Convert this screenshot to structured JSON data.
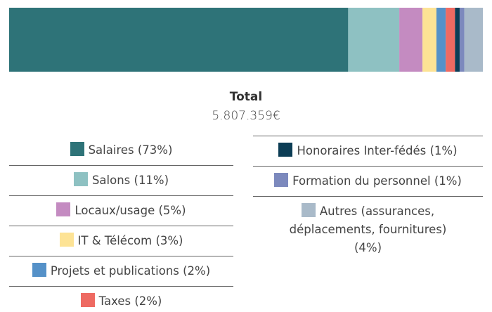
{
  "chart_data": {
    "type": "stacked_bar",
    "total_title": "Total",
    "total_value": "5.807.359€",
    "series": [
      {
        "name": "Salaires (73%)",
        "color": "#2e7378",
        "values": [
          73
        ]
      },
      {
        "name": "Salons (11%)",
        "color": "#8ec1c2",
        "values": [
          11
        ]
      },
      {
        "name": "Locaux/usage (5%)",
        "color": "#c48bc1",
        "values": [
          5
        ]
      },
      {
        "name": "IT & Télécom (3%)",
        "color": "#fde395",
        "values": [
          3
        ]
      },
      {
        "name": "Projets et publications (2%)",
        "color": "#5591c8",
        "values": [
          2
        ]
      },
      {
        "name": "Taxes (2%)",
        "color": "#ee6a62",
        "values": [
          2
        ]
      },
      {
        "name": "Honoraires Inter-fédés (1%)",
        "color": "#0c3d55",
        "values": [
          1
        ]
      },
      {
        "name": "Formation du personnel (1%)",
        "color": "#7c89bd",
        "values": [
          1
        ]
      },
      {
        "name": "Autres (assurances, déplacements, fournitures) (4%)",
        "color": "#a9bac9",
        "values": [
          4
        ]
      }
    ]
  }
}
